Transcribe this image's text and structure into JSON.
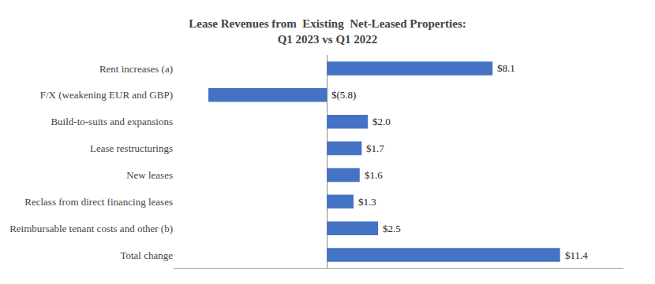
{
  "chart_data": {
    "type": "bar",
    "orientation": "horizontal",
    "title": "Lease Revenues from  Existing  Net-Leased Properties:",
    "subtitle": "Q1 2023 vs Q1 2022",
    "categories": [
      "Total change",
      "Reimbursable tenant costs and other (b)",
      "Reclass from direct financing leases",
      "New leases",
      "Lease restructurings",
      "Build-to-suits and expansions",
      "F/X (weakening EUR and GBP)",
      "Rent increases (a)"
    ],
    "values": [
      11.4,
      2.5,
      1.3,
      1.6,
      1.7,
      2.0,
      -5.8,
      8.1
    ],
    "value_labels": [
      "$11.4",
      "$2.5",
      "$1.3",
      "$1.6",
      "$1.7",
      "$2.0",
      "$(5.8)",
      "$8.1"
    ],
    "data_labels": true,
    "color": "#4472C4",
    "xlim": [
      -7.5,
      14.5
    ],
    "xticks": [],
    "grid": false,
    "tick_labels": "y"
  }
}
